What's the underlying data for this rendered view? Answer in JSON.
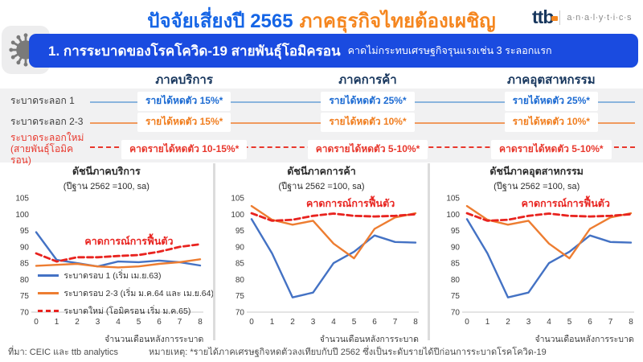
{
  "colors": {
    "banner_blue": "#1a4be0",
    "title_blue": "#1565e6",
    "title_orange": "#f5861f",
    "navy": "#17365d"
  },
  "header": {
    "title_blue": "ปัจจัยเสี่ยงปี 2565",
    "title_orange": "ภาคธุรกิจไทยต้องเผชิญ",
    "logo_brand": "ttb",
    "logo_suffix": "a·n·a·l·y·t·i·c·s"
  },
  "banner": {
    "title": "1. การระบาดของโรคโควิด-19 สายพันธุ์โอมิครอน",
    "subtitle": "คาดไม่กระทบเศรษฐกิจรุนแรงเช่น 3 ระลอกแรก"
  },
  "comparison_table": {
    "column_headers": [
      "ภาคบริการ",
      "ภาคการค้า",
      "ภาคอุตสาหกรรม"
    ],
    "rows": [
      {
        "label": "ระบาดระลอก 1",
        "label2": "",
        "values": [
          "รายได้หดตัว 15%*",
          "รายได้หดตัว 25%*",
          "รายได้หดตัว 25%*"
        ],
        "value_color": "#1b6ad2",
        "line_color": "#8ab4dd",
        "dashed": false
      },
      {
        "label": "ระบาดระลอก 2-3",
        "label2": "",
        "values": [
          "รายได้หดตัว 15%*",
          "รายได้หดตัว 10%*",
          "รายได้หดตัว 10%*"
        ],
        "value_color": "#f07d1e",
        "line_color": "#f09a5e",
        "dashed": false
      },
      {
        "label": "ระบาดระลอกใหม่",
        "label2": "(สายพันธุ์โอมิครอน)",
        "values": [
          "คาดรายได้หดตัว 10-15%*",
          "คาดรายได้หดตัว 5-10%*",
          "คาดรายได้หดตัว 5-10%*"
        ],
        "value_color": "#e8372c",
        "line_color": "#e8372c",
        "dashed": true
      }
    ]
  },
  "chart_data": [
    {
      "type": "line",
      "title": "ดัชนีภาคบริการ",
      "subtitle": "(ปีฐาน 2562 =100, sa)",
      "xlabel": "จำนวนเดือนหลังการระบาด",
      "x": [
        0,
        1,
        2,
        3,
        4,
        5,
        6,
        7,
        8
      ],
      "ylim": [
        70,
        105
      ],
      "ytick_step": 5,
      "grid": false,
      "annotation": "คาดการณ์การฟื้นตัว",
      "legend_position": "inside-bottom-left",
      "series": [
        {
          "name": "ระบาดรอบ 1 (เริ่ม เม.ย.63)",
          "color": "#4472c4",
          "dash": null,
          "values": [
            94.5,
            86.0,
            85.0,
            84.0,
            85.5,
            85.3,
            85.8,
            85.3,
            84.3
          ]
        },
        {
          "name": "ระบาดรอบ 2-3 (เริ่ม ม.ค.64 และ เม.ย.64)",
          "color": "#ed7d31",
          "dash": null,
          "values": [
            84.2,
            84.5,
            84.8,
            84.0,
            83.7,
            84.0,
            84.8,
            85.3,
            86.2
          ]
        },
        {
          "name": "ระบาดใหม่  (โอมิครอน เริ่ม ม.ค.65)",
          "color": "#e8231f",
          "dash": "7 4",
          "values": [
            88.0,
            85.5,
            86.8,
            86.8,
            87.2,
            87.5,
            88.5,
            90.0,
            90.8
          ]
        }
      ]
    },
    {
      "type": "line",
      "title": "ดัชนีภาคการค้า",
      "subtitle": "(ปีฐาน 2562 =100, sa)",
      "xlabel": "จำนวนเดือนหลังการระบาด",
      "x": [
        0,
        1,
        2,
        3,
        4,
        5,
        6,
        7,
        8
      ],
      "ylim": [
        70,
        105
      ],
      "ytick_step": 5,
      "grid": false,
      "annotation": "คาดการณ์การฟื้นตัว",
      "legend_position": "none",
      "series": [
        {
          "name": "ระบาดรอบ 1 (เริ่ม เม.ย.63)",
          "color": "#4472c4",
          "dash": null,
          "values": [
            98.5,
            88.0,
            74.5,
            76.0,
            85.0,
            88.5,
            93.5,
            91.5,
            91.3
          ]
        },
        {
          "name": "ระบาดรอบ 2-3 (เริ่ม ม.ค.64 และ เม.ย.64)",
          "color": "#ed7d31",
          "dash": null,
          "values": [
            102.5,
            98.3,
            96.8,
            98.0,
            91.0,
            86.5,
            95.5,
            99.0,
            100.3
          ]
        },
        {
          "name": "ระบาดใหม่  (โอมิครอน เริ่ม ม.ค.65)",
          "color": "#e8231f",
          "dash": "7 4",
          "values": [
            100.3,
            98.0,
            98.3,
            99.5,
            100.2,
            99.5,
            99.3,
            99.5,
            100.0
          ]
        }
      ]
    },
    {
      "type": "line",
      "title": "ดัชนีภาคอุตสาหกรรม",
      "subtitle": "(ปีฐาน 2562 =100, sa)",
      "xlabel": "จำนวนเดือนหลังการระบาด",
      "x": [
        0,
        1,
        2,
        3,
        4,
        5,
        6,
        7,
        8
      ],
      "ylim": [
        70,
        105
      ],
      "ytick_step": 5,
      "grid": false,
      "annotation": "คาดการณ์การฟื้นตัว",
      "legend_position": "none",
      "series": [
        {
          "name": "ระบาดรอบ 1 (เริ่ม เม.ย.63)",
          "color": "#4472c4",
          "dash": null,
          "values": [
            98.5,
            88.0,
            74.5,
            76.0,
            85.0,
            88.5,
            93.5,
            91.5,
            91.3
          ]
        },
        {
          "name": "ระบาดรอบ 2-3 (เริ่ม ม.ค.64 และ เม.ย.64)",
          "color": "#ed7d31",
          "dash": null,
          "values": [
            102.5,
            98.3,
            96.8,
            98.0,
            91.0,
            86.5,
            95.5,
            99.0,
            100.3
          ]
        },
        {
          "name": "ระบาดใหม่  (โอมิครอน เริ่ม ม.ค.65)",
          "color": "#e8231f",
          "dash": "7 4",
          "values": [
            100.3,
            98.0,
            98.3,
            99.5,
            100.2,
            99.5,
            99.3,
            99.5,
            100.0
          ]
        }
      ]
    }
  ],
  "footer": {
    "source": "ที่มา: CEIC และ ttb analytics",
    "note": "หมายเหตุ: *รายได้ภาคเศรษฐกิจหดตัวลงเทียบกับปี  2562 ซึ่งเป็นระดับรายได้ปีก่อนการระบาดโรคโควิด-19"
  }
}
